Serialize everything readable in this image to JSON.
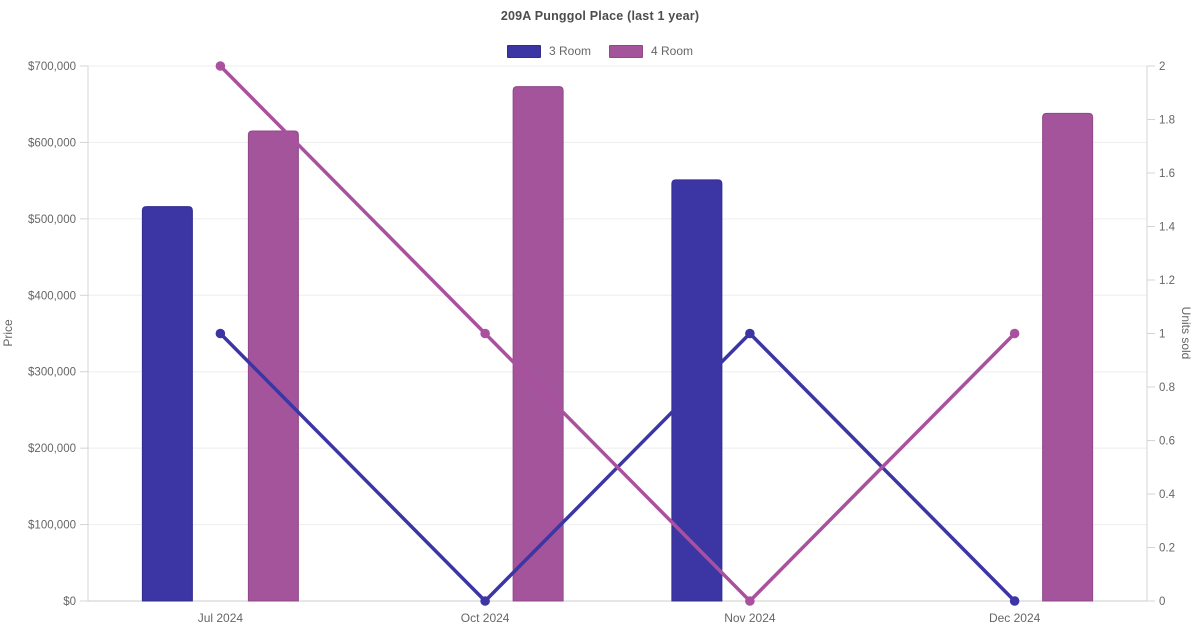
{
  "chart_data": {
    "type": "combo-bar-line",
    "title": "209A Punggol Place (last 1 year)",
    "categories": [
      "Jul 2024",
      "Oct 2024",
      "Nov 2024",
      "Dec 2024"
    ],
    "bar_series": [
      {
        "name": "3 Room",
        "color": "#3c36a4",
        "border": "#322c8f",
        "unit": "price_$",
        "values": [
          516000,
          null,
          551000,
          null
        ]
      },
      {
        "name": "4 Room",
        "color": "#a3549b",
        "border": "#91478a",
        "unit": "price_$",
        "values": [
          615000,
          673000,
          null,
          638000
        ]
      }
    ],
    "line_series": [
      {
        "name": "3 Room",
        "color": "#3c36a4",
        "unit": "units_sold",
        "values": [
          1,
          0,
          1,
          0
        ]
      },
      {
        "name": "4 Room",
        "color": "#a9519f",
        "unit": "units_sold",
        "values": [
          2,
          1,
          0,
          1
        ]
      }
    ],
    "left_axis": {
      "label": "Price",
      "min": 0,
      "max": 700000,
      "tick_labels": [
        "$0",
        "$100,000",
        "$200,000",
        "$300,000",
        "$400,000",
        "$500,000",
        "$600,000",
        "$700,000"
      ]
    },
    "right_axis": {
      "label": "Units sold",
      "min": 0,
      "max": 2,
      "tick_labels": [
        "0",
        "0.2",
        "0.4",
        "0.6",
        "0.8",
        "1",
        "1.2",
        "1.4",
        "1.6",
        "1.8",
        "2"
      ]
    },
    "legend": [
      {
        "label": "3 Room",
        "color": "#3c36a4",
        "border": "#322c8f"
      },
      {
        "label": "4 Room",
        "color": "#a3549b",
        "border": "#91478a"
      }
    ],
    "layout": {
      "grid": true,
      "legend_position": "top",
      "gridline_color": "#ededed",
      "axis_line_color": "#d4d4d4",
      "tick_text_color": "#666666"
    }
  }
}
